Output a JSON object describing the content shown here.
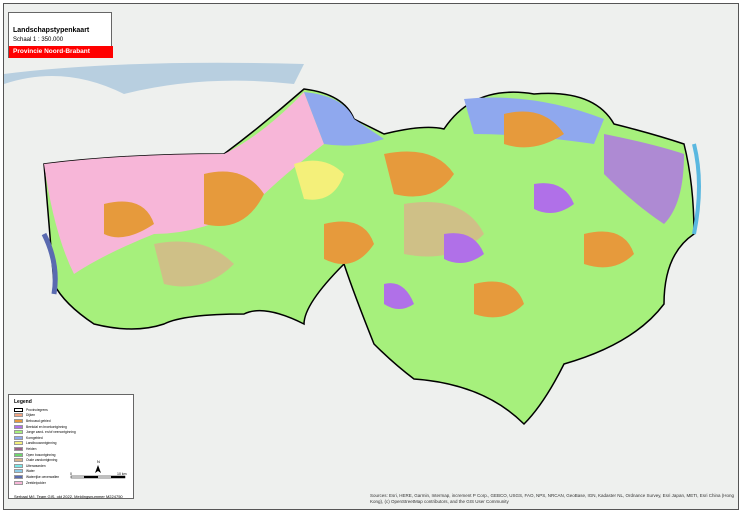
{
  "title": "Landschapstypenkaart",
  "scale": "Schaal 1 : 350.000",
  "province": "Provincie Noord-Brabant",
  "legend": {
    "heading": "Legend",
    "items": [
      {
        "label": "Provinciegrens",
        "color": "#ffffff"
      },
      {
        "label": "Dijken",
        "color": "#f4a582"
      },
      {
        "label": "Bebouwd gebied",
        "color": "#e69a3c"
      },
      {
        "label": "Beekdal en broekontginning",
        "color": "#b070e8"
      },
      {
        "label": "Jonge zand- en/of veenontginning",
        "color": "#a6f07c"
      },
      {
        "label": "Komgebied",
        "color": "#8fa8ee"
      },
      {
        "label": "Landbouwontginning",
        "color": "#f4f07a"
      },
      {
        "label": "Heiden",
        "color": "#9a5e84"
      },
      {
        "label": "Open bosontginning",
        "color": "#6ed66e"
      },
      {
        "label": "Oude zandontginning",
        "color": "#d9b48a"
      },
      {
        "label": "Uiterwaarden",
        "color": "#7ae8e8"
      },
      {
        "label": "Water",
        "color": "#8ecae6"
      },
      {
        "label": "Waterrijke oeverwallen",
        "color": "#5a6ab0"
      },
      {
        "label": "Zeekleipolder",
        "color": "#f7b6d8"
      }
    ],
    "scalebar_start": "0",
    "scalebar_end": "10 km",
    "north": "N",
    "footer": "Serbaal M/I, Team GIS, okt 2022, Meldingsnummer M224750"
  },
  "credits": "Sources: Esri, HERE, Garmin, Intermap, increment P Corp., GEBCO, USGS, FAO, NPS, NRCAN, GeoBase, IGN, Kadaster NL, Ordnance Survey, Esri Japan, METI, Esri China (Hong Kong), (c) OpenStreetMap contributors, and the GIS User Community"
}
